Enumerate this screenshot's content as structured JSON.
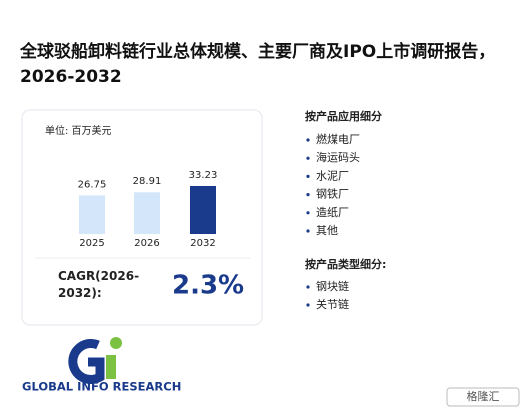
{
  "chart_data": {
    "type": "bar",
    "title": "全球驳船卸料链行业总体规模、主要厂商及IPO上市调研报告，2026-2032",
    "unit_label": "单位: 百万美元",
    "categories": [
      "2025",
      "2026",
      "2032"
    ],
    "values": [
      26.75,
      28.91,
      33.23
    ],
    "colors": [
      "#d3e6fa",
      "#d3e6fa",
      "#1a3a8c"
    ]
  },
  "cagr": {
    "label": "CAGR(2026-2032):",
    "value": "2.3%"
  },
  "application": {
    "heading": "按产品应用细分",
    "items": [
      "燃煤电厂",
      "海运码头",
      "水泥厂",
      "钢铁厂",
      "造纸厂",
      "其他"
    ]
  },
  "product_type": {
    "heading": "按产品类型细分:",
    "items": [
      "钢块链",
      "关节链"
    ]
  },
  "logo": {
    "text": "GLOBAL INFO RESEARCH"
  },
  "watermark": {
    "text": "格隆汇"
  }
}
